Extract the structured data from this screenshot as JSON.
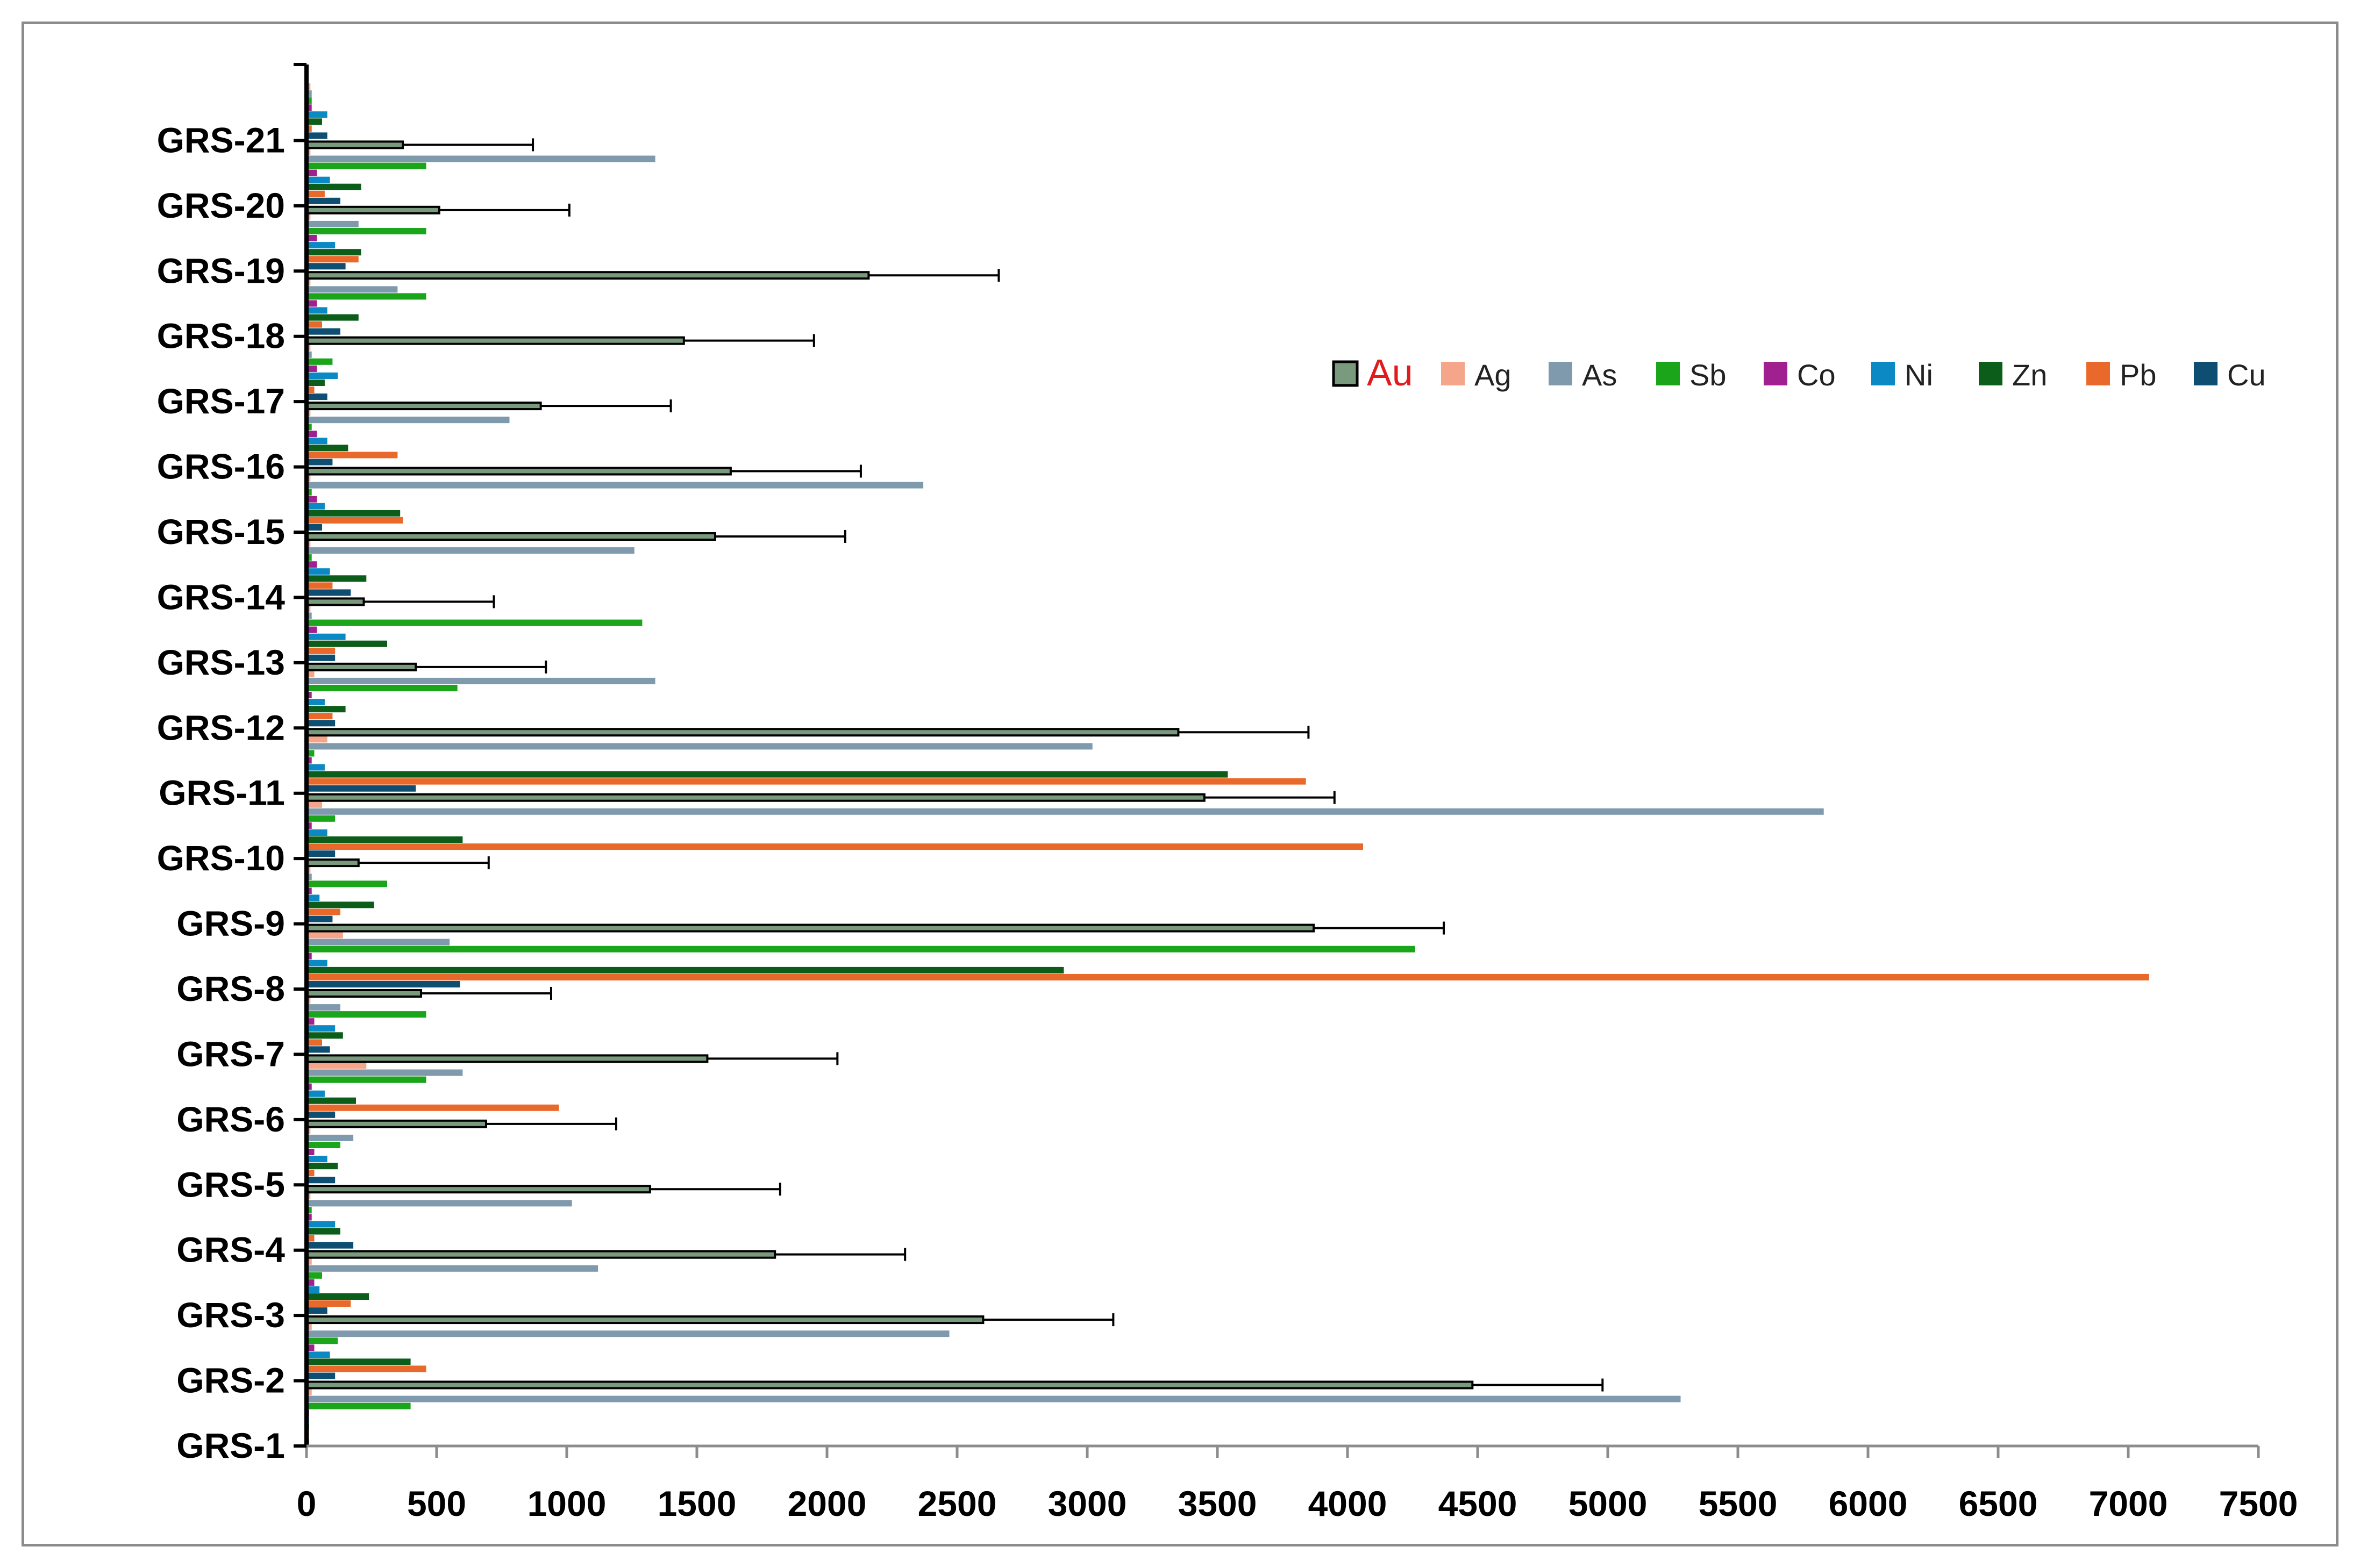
{
  "chart_data": {
    "type": "bar",
    "orientation": "horizontal",
    "title": "",
    "xlabel": "",
    "ylabel": "",
    "xlim": [
      0,
      7500
    ],
    "x_ticks": [
      0,
      500,
      1000,
      1500,
      2000,
      2500,
      3000,
      3500,
      4000,
      4500,
      5000,
      5500,
      6000,
      6500,
      7000,
      7500
    ],
    "grid": false,
    "legend_position": "right",
    "categories": [
      "GRS-1",
      "GRS-2",
      "GRS-3",
      "GRS-4",
      "GRS-5",
      "GRS-6",
      "GRS-7",
      "GRS-8",
      "GRS-9",
      "GRS-10",
      "GRS-11",
      "GRS-12",
      "GRS-13",
      "GRS-14",
      "GRS-15",
      "GRS-16",
      "GRS-17",
      "GRS-18",
      "GRS-19",
      "GRS-20",
      "GRS-21"
    ],
    "series_order_bottom_to_top": [
      "Cu",
      "Pb",
      "Zn",
      "Ni",
      "Co",
      "Sb",
      "As",
      "Ag",
      "Au"
    ],
    "series": [
      {
        "name": "Au",
        "color": "#7a9a7e",
        "error_bar": true,
        "values": [
          4480,
          2600,
          1800,
          1320,
          690,
          1540,
          440,
          3870,
          200,
          3450,
          3350,
          420,
          220,
          1570,
          1630,
          900,
          1450,
          2160,
          510,
          370,
          0
        ]
      },
      {
        "name": "Ag",
        "color": "#f4a58a",
        "values": [
          20,
          20,
          20,
          15,
          15,
          230,
          15,
          140,
          15,
          60,
          80,
          30,
          15,
          15,
          15,
          15,
          15,
          15,
          15,
          15,
          15
        ]
      },
      {
        "name": "As",
        "color": "#7f9aad",
        "values": [
          5280,
          2470,
          1120,
          1020,
          180,
          600,
          130,
          550,
          20,
          5830,
          3020,
          1340,
          20,
          1260,
          2370,
          780,
          20,
          350,
          200,
          1340,
          20
        ]
      },
      {
        "name": "Sb",
        "color": "#1aa51a",
        "values": [
          400,
          120,
          60,
          20,
          130,
          460,
          460,
          4260,
          310,
          110,
          30,
          580,
          1290,
          20,
          20,
          20,
          100,
          460,
          460,
          460,
          20
        ]
      },
      {
        "name": "Co",
        "color": "#a0208f",
        "values": [
          10,
          30,
          30,
          20,
          30,
          20,
          30,
          20,
          20,
          20,
          20,
          20,
          40,
          40,
          40,
          40,
          40,
          40,
          40,
          40,
          20
        ]
      },
      {
        "name": "Ni",
        "color": "#0a89c4",
        "values": [
          10,
          90,
          50,
          110,
          80,
          70,
          110,
          80,
          50,
          80,
          70,
          70,
          150,
          90,
          70,
          80,
          120,
          80,
          110,
          90,
          80
        ]
      },
      {
        "name": "Zn",
        "color": "#0b5d19",
        "values": [
          10,
          400,
          240,
          130,
          120,
          190,
          140,
          2910,
          260,
          600,
          3540,
          150,
          310,
          230,
          360,
          160,
          70,
          200,
          210,
          210,
          60
        ]
      },
      {
        "name": "Pb",
        "color": "#e9692a",
        "values": [
          10,
          460,
          170,
          30,
          30,
          970,
          60,
          7080,
          130,
          4060,
          3840,
          100,
          110,
          100,
          370,
          350,
          30,
          60,
          200,
          70,
          20
        ]
      },
      {
        "name": "Cu",
        "color": "#0d4e72",
        "values": [
          10,
          110,
          80,
          180,
          110,
          110,
          90,
          590,
          100,
          110,
          420,
          110,
          110,
          170,
          60,
          100,
          80,
          130,
          150,
          130,
          80
        ]
      }
    ],
    "error_bar_au": 500
  },
  "legend": {
    "items": [
      {
        "label": "Au",
        "color": "#7a9a7e"
      },
      {
        "label": "Ag",
        "color": "#f4a58a"
      },
      {
        "label": "As",
        "color": "#7f9aad"
      },
      {
        "label": "Sb",
        "color": "#1aa51a"
      },
      {
        "label": "Co",
        "color": "#a0208f"
      },
      {
        "label": "Ni",
        "color": "#0a89c4"
      },
      {
        "label": "Zn",
        "color": "#0b5d19"
      },
      {
        "label": "Pb",
        "color": "#e9692a"
      },
      {
        "label": "Cu",
        "color": "#0d4e72"
      }
    ]
  }
}
